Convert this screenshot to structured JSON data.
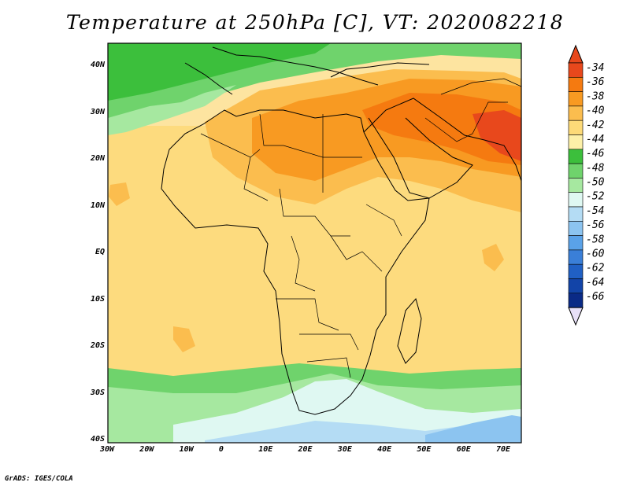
{
  "title": "Temperature at 250hPa [C], VT: 2020082218",
  "footer": "GrADS: IGES/COLA",
  "lat_labels": [
    "40N",
    "30N",
    "20N",
    "10N",
    "EQ",
    "10S",
    "20S",
    "30S",
    "40S"
  ],
  "lon_labels": [
    "30W",
    "20W",
    "10W",
    "0",
    "10E",
    "20E",
    "30E",
    "40E",
    "50E",
    "60E",
    "70E"
  ],
  "colorbar": {
    "labels": [
      "-34",
      "-36",
      "-38",
      "-40",
      "-42",
      "-44",
      "-46",
      "-48",
      "-50",
      "-52",
      "-54",
      "-56",
      "-58",
      "-60",
      "-62",
      "-64",
      "-66"
    ],
    "colors": [
      "#e8481c",
      "#f57a10",
      "#f89a22",
      "#fbbd4e",
      "#fdda78",
      "#fdf0a8",
      "#3cbf3c",
      "#6fd36c",
      "#a6e8a0",
      "#dff8f2",
      "#b4dcf4",
      "#8cc4f0",
      "#5aa2e8",
      "#3a7fd8",
      "#2060c4",
      "#1244a8",
      "#0a2a86"
    ]
  }
}
